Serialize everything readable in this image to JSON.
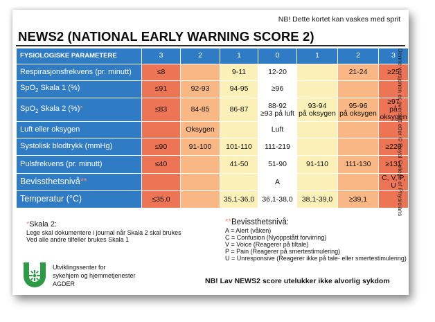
{
  "nb_top": "NB! Dette kortet kan vaskes med sprit",
  "title": "NEWS2 (NATIONAL EARLY WARNING SCORE 2)",
  "vertical_note": "Denne versjonen er oversatt etter © Royal College of Physicians",
  "table": {
    "header_label": "FYSIOLOGISKE PARAMETERE",
    "scores": [
      "3",
      "2",
      "1",
      "0",
      "1",
      "2",
      "3"
    ],
    "rows": [
      {
        "label": "Respirasjonsfrekvens (pr. minutt)",
        "cells": [
          "≤8",
          "",
          "9-11",
          "12-20",
          "",
          "21-24",
          "≥25"
        ]
      },
      {
        "label": "SpO2 Skala 1 (%)",
        "cells": [
          "≤91",
          "92-93",
          "94-95",
          "≥96",
          "",
          "",
          ""
        ]
      },
      {
        "label": "SpO2 Skala 2 (%)",
        "star": "*",
        "cells": [
          "≤83",
          "84-85",
          "86-87",
          "88-92\n≥93 på luft",
          "93-94\npå oksygen",
          "95-96\npå oksygen",
          "≥97\npå oksygen"
        ]
      },
      {
        "label": "Luft eller oksygen",
        "cells": [
          "",
          "Oksygen",
          "",
          "Luft",
          "",
          "",
          ""
        ]
      },
      {
        "label": "Systolisk blodtrykk (mmHg)",
        "cells": [
          "≤90",
          "91-100",
          "101-110",
          "111-219",
          "",
          "",
          "≥220"
        ]
      },
      {
        "label": "Pulsfrekvens (pr. minutt)",
        "cells": [
          "≤40",
          "",
          "41-50",
          "51-90",
          "91-110",
          "111-130",
          "≥131"
        ]
      },
      {
        "label": "Bevissthetsnivå",
        "star": "**",
        "cells": [
          "",
          "",
          "",
          "A",
          "",
          "",
          "C, V, P, U"
        ]
      },
      {
        "label": "Temperatur (°C)",
        "cells": [
          "≤35,0",
          "",
          "35,1-36,0",
          "36,1-38,0",
          "38,1-39,0",
          "≥39,1",
          ""
        ]
      }
    ]
  },
  "notes_left": {
    "star": "*",
    "heading": "Skala 2:",
    "lines": [
      "Lege skal dokumentere i journal når Skala 2 skal brukes",
      "Ved alle andre tilfeller brukes Skala 1"
    ]
  },
  "notes_right": {
    "star": "**",
    "heading": "Bevissthetsnivå:",
    "lines": [
      "A = Alert (våken)",
      "C = Confusion (Nyoppstått forvirring)",
      "V = Voice (Reagerer på tiltale)",
      "P = Pain (Reagerer på smertestimulering)",
      "U = Unresponsive (Reagerer ikke på tale- eller smertestimulering)"
    ]
  },
  "organization": {
    "line1": "Utviklingssenter for",
    "line2": "sykehjem og hjemmetjenester",
    "line3": "AGDER"
  },
  "nb_bottom": "NB! Lav NEWS2 score utelukker ikke alvorlig sykdom",
  "colors": {
    "score3": "#ee7456",
    "score2": "#f8b784",
    "score1": "#fbf1b8",
    "header_blue": "#2f7bc4",
    "logo_green": "#2d9a45"
  }
}
